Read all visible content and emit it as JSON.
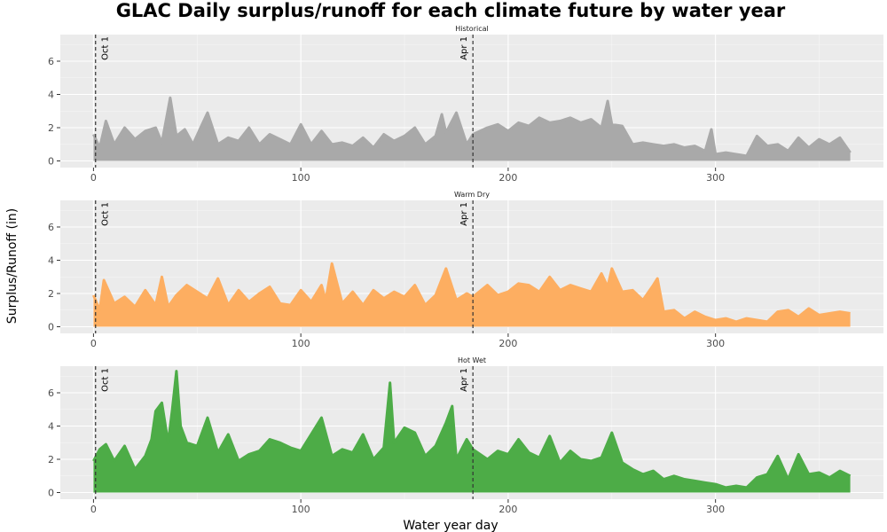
{
  "chart_data": {
    "type": "line",
    "title": "GLAC Daily surplus/runoff for each climate future by water year",
    "xlabel": "Water year day",
    "ylabel": "Surplus/Runoff (in)",
    "xlim": [
      -16,
      381
    ],
    "ylim": [
      -0.4,
      7.6
    ],
    "x_ticks": [
      0,
      100,
      200,
      300
    ],
    "y_ticks": [
      0,
      2,
      4,
      6
    ],
    "grid": true,
    "legend": "none",
    "vlines": [
      {
        "x": 1,
        "label": "Oct 1"
      },
      {
        "x": 183,
        "label": "Apr 1"
      }
    ],
    "panels": [
      {
        "name": "Historical",
        "color": "#a9a9a9",
        "x": [
          0,
          3,
          6,
          10,
          15,
          20,
          25,
          30,
          33,
          37,
          40,
          44,
          48,
          52,
          55,
          60,
          65,
          70,
          75,
          80,
          85,
          90,
          95,
          100,
          105,
          110,
          115,
          120,
          125,
          130,
          135,
          140,
          145,
          150,
          155,
          160,
          165,
          168,
          170,
          175,
          180,
          183,
          190,
          195,
          200,
          205,
          210,
          215,
          220,
          225,
          230,
          235,
          240,
          245,
          248,
          250,
          255,
          260,
          265,
          270,
          275,
          280,
          285,
          290,
          295,
          298,
          300,
          305,
          310,
          315,
          320,
          325,
          330,
          335,
          340,
          345,
          350,
          355,
          360,
          365
        ],
        "y": [
          1.6,
          0.8,
          2.4,
          1.0,
          2.0,
          1.3,
          1.8,
          2.0,
          1.1,
          3.8,
          1.5,
          1.9,
          1.0,
          2.1,
          2.9,
          1.0,
          1.4,
          1.2,
          2.0,
          1.0,
          1.6,
          1.3,
          1.0,
          2.2,
          1.0,
          1.8,
          1.0,
          1.1,
          0.9,
          1.4,
          0.8,
          1.6,
          1.2,
          1.5,
          2.0,
          1.0,
          1.5,
          2.8,
          1.7,
          2.9,
          1.0,
          1.6,
          2.0,
          2.2,
          1.8,
          2.3,
          2.1,
          2.6,
          2.3,
          2.4,
          2.6,
          2.3,
          2.5,
          2.0,
          3.6,
          2.2,
          2.1,
          1.0,
          1.1,
          1.0,
          0.9,
          1.0,
          0.8,
          0.9,
          0.6,
          1.9,
          0.4,
          0.5,
          0.4,
          0.3,
          1.5,
          0.9,
          1.0,
          0.6,
          1.4,
          0.8,
          1.3,
          1.0,
          1.4,
          0.5
        ]
      },
      {
        "name": "Warm Dry",
        "color": "#fdae61",
        "x": [
          0,
          3,
          5,
          10,
          15,
          20,
          25,
          30,
          33,
          36,
          40,
          45,
          50,
          55,
          60,
          65,
          70,
          75,
          80,
          85,
          90,
          95,
          100,
          105,
          110,
          112,
          115,
          120,
          125,
          130,
          135,
          140,
          145,
          150,
          155,
          160,
          165,
          170,
          175,
          180,
          183,
          190,
          195,
          200,
          205,
          210,
          215,
          220,
          225,
          230,
          235,
          240,
          245,
          248,
          250,
          255,
          260,
          265,
          270,
          272,
          275,
          280,
          285,
          290,
          295,
          300,
          305,
          310,
          315,
          320,
          325,
          330,
          335,
          340,
          345,
          350,
          355,
          360,
          365
        ],
        "y": [
          1.9,
          1.0,
          2.8,
          1.4,
          1.8,
          1.2,
          2.2,
          1.3,
          3.0,
          1.2,
          1.9,
          2.5,
          2.1,
          1.7,
          2.9,
          1.3,
          2.2,
          1.5,
          2.0,
          2.4,
          1.4,
          1.3,
          2.2,
          1.5,
          2.5,
          1.6,
          3.8,
          1.4,
          2.1,
          1.3,
          2.2,
          1.7,
          2.1,
          1.8,
          2.5,
          1.3,
          1.9,
          3.5,
          1.6,
          2.0,
          1.8,
          2.5,
          1.9,
          2.1,
          2.6,
          2.5,
          2.1,
          3.0,
          2.2,
          2.5,
          2.3,
          2.1,
          3.2,
          2.4,
          3.5,
          2.1,
          2.2,
          1.6,
          2.5,
          2.9,
          0.9,
          1.0,
          0.5,
          0.9,
          0.6,
          0.4,
          0.5,
          0.3,
          0.5,
          0.4,
          0.3,
          0.9,
          1.0,
          0.6,
          1.1,
          0.7,
          0.8,
          0.9,
          0.8
        ]
      },
      {
        "name": "Hot Wet",
        "color": "#4dac47",
        "x": [
          0,
          3,
          6,
          10,
          15,
          20,
          25,
          28,
          30,
          33,
          36,
          38,
          40,
          42,
          45,
          50,
          55,
          60,
          65,
          70,
          75,
          80,
          85,
          90,
          95,
          100,
          105,
          110,
          115,
          120,
          125,
          130,
          135,
          140,
          143,
          145,
          150,
          155,
          160,
          165,
          170,
          173,
          175,
          180,
          183,
          190,
          195,
          200,
          205,
          210,
          215,
          220,
          225,
          230,
          235,
          240,
          245,
          250,
          255,
          260,
          265,
          270,
          275,
          280,
          285,
          290,
          295,
          300,
          305,
          310,
          315,
          320,
          325,
          330,
          335,
          340,
          345,
          350,
          355,
          360,
          365
        ],
        "y": [
          1.9,
          2.6,
          2.9,
          1.9,
          2.8,
          1.4,
          2.2,
          3.2,
          4.9,
          5.4,
          3.0,
          5.0,
          7.3,
          4.0,
          3.0,
          2.8,
          4.5,
          2.4,
          3.5,
          1.9,
          2.3,
          2.5,
          3.2,
          3.0,
          2.7,
          2.5,
          3.5,
          4.5,
          2.2,
          2.6,
          2.4,
          3.5,
          2.0,
          2.7,
          6.6,
          3.0,
          3.9,
          3.6,
          2.2,
          2.8,
          4.2,
          5.2,
          2.0,
          3.2,
          2.6,
          2.0,
          2.5,
          2.3,
          3.2,
          2.4,
          2.1,
          3.4,
          1.8,
          2.5,
          2.0,
          1.9,
          2.1,
          3.6,
          1.8,
          1.4,
          1.1,
          1.3,
          0.8,
          1.0,
          0.8,
          0.7,
          0.6,
          0.5,
          0.3,
          0.4,
          0.3,
          0.9,
          1.1,
          2.2,
          0.8,
          2.3,
          1.1,
          1.2,
          0.9,
          1.3,
          1.0
        ]
      }
    ]
  }
}
